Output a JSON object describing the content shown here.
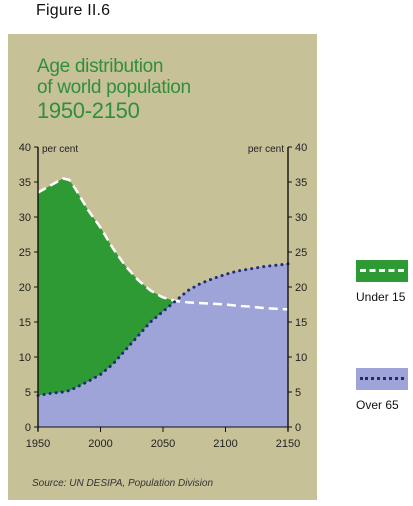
{
  "figure_label": "Figure II.6",
  "chart_data": {
    "type": "area",
    "title_lines": [
      "Age distribution",
      "of world population",
      "1950-2150"
    ],
    "ylabel_left": "per cent",
    "ylabel_right": "per cent",
    "xlim": [
      1950,
      2150
    ],
    "ylim": [
      0,
      40
    ],
    "x_ticks": [
      1950,
      2000,
      2050,
      2100,
      2150
    ],
    "y_ticks": [
      0,
      5,
      10,
      15,
      20,
      25,
      30,
      35,
      40
    ],
    "x": [
      1950,
      1960,
      1970,
      1975,
      1980,
      1990,
      2000,
      2010,
      2020,
      2030,
      2040,
      2050,
      2060,
      2070,
      2080,
      2090,
      2100,
      2110,
      2120,
      2130,
      2140,
      2150
    ],
    "series": [
      {
        "name": "Under 15",
        "color": "#2e9a33",
        "line_color": "#ffffff",
        "line_style": "dashed",
        "values": [
          33.5,
          34.5,
          35.5,
          35.3,
          34.0,
          31.0,
          28.5,
          25.5,
          23.0,
          21.0,
          19.5,
          18.5,
          18.0,
          17.8,
          17.7,
          17.6,
          17.5,
          17.3,
          17.2,
          17.0,
          16.9,
          16.8
        ]
      },
      {
        "name": "Over 65",
        "color": "#9ea4d8",
        "line_color": "#1f2a7a",
        "line_style": "dotted",
        "values": [
          4.5,
          4.8,
          5.0,
          5.2,
          5.6,
          6.5,
          7.5,
          9.0,
          11.0,
          13.0,
          15.0,
          16.5,
          18.0,
          19.5,
          20.5,
          21.2,
          21.8,
          22.3,
          22.6,
          22.9,
          23.1,
          23.3
        ]
      }
    ]
  },
  "source": "Source: UN DESIPA, Population Division",
  "legend": [
    {
      "label": "Under 15",
      "fill": "#2e9a33",
      "line": "#ffffff"
    },
    {
      "label": "Over 65",
      "fill": "#9ea4d8",
      "line": "#1f2a7a"
    }
  ]
}
